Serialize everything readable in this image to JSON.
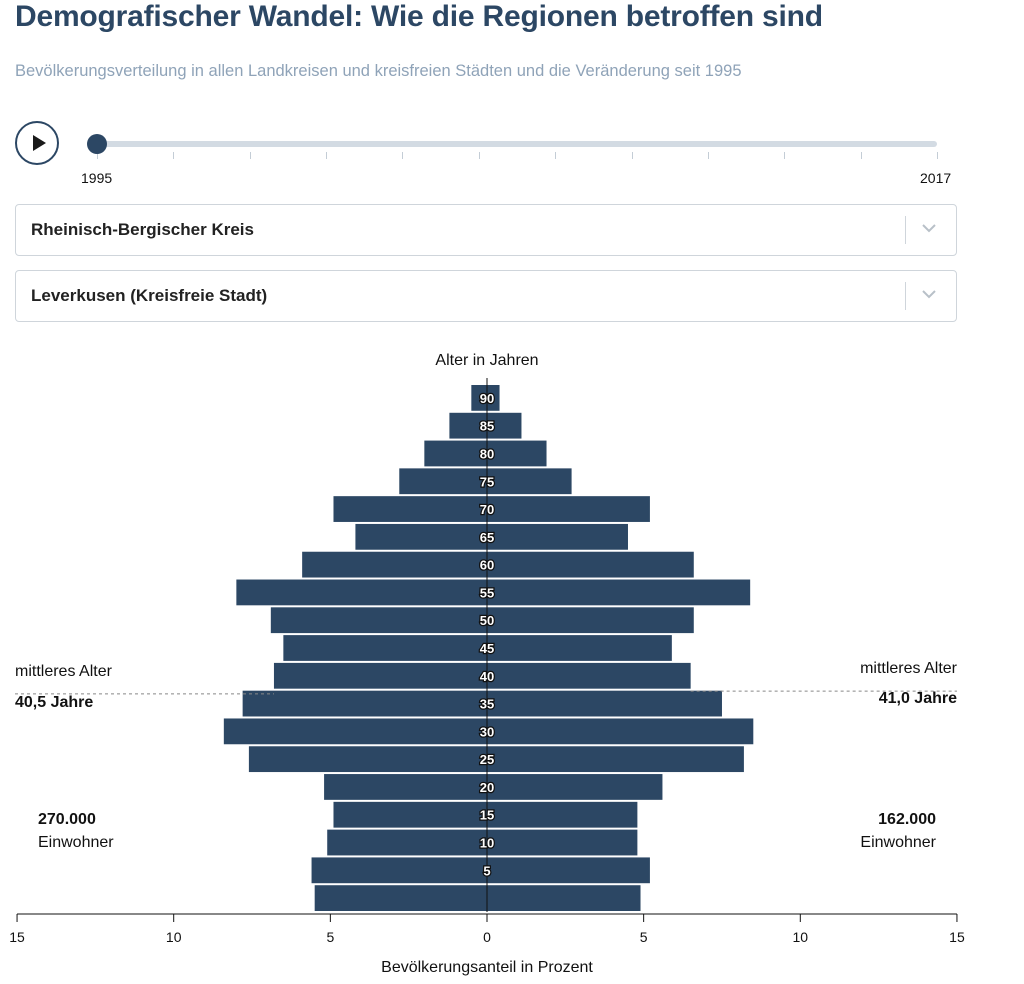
{
  "header": {
    "title": "Demografischer Wandel: Wie die Regionen betroffen sind",
    "subtitle": "Bevölkerungsverteilung in allen Landkreisen und kreisfreien Städten und die Veränderung seit 1995"
  },
  "controls": {
    "play_icon": "play-icon",
    "slider": {
      "start_label": "1995",
      "end_label": "2017",
      "value": 1995,
      "min": 1995,
      "max": 2017
    },
    "region_left": "Rheinisch-Bergischer Kreis",
    "region_right": "Leverkusen (Kreisfreie Stadt)"
  },
  "colors": {
    "bar": "#2c4764",
    "title": "#2c4764",
    "subtitle": "#8fa3b8"
  },
  "chart_data": {
    "type": "bar",
    "orientation": "horizontal-population-pyramid",
    "y_title": "Alter in Jahren",
    "x_title": "Bevölkerungsanteil in Prozent",
    "xlim": [
      -15,
      15
    ],
    "x_ticks": [
      "15",
      "10",
      "5",
      "0",
      "5",
      "10",
      "15"
    ],
    "categories": [
      "0",
      "5",
      "10",
      "15",
      "20",
      "25",
      "30",
      "35",
      "40",
      "45",
      "50",
      "55",
      "60",
      "65",
      "70",
      "75",
      "80",
      "85",
      "90"
    ],
    "category_labels": [
      "",
      "5",
      "10",
      "15",
      "20",
      "25",
      "30",
      "35",
      "40",
      "45",
      "50",
      "55",
      "60",
      "65",
      "70",
      "75",
      "80",
      "85",
      "90"
    ],
    "series": [
      {
        "name": "Rheinisch-Bergischer Kreis",
        "side": "left",
        "values": [
          5.5,
          5.6,
          5.1,
          4.9,
          5.2,
          7.6,
          8.4,
          7.8,
          6.8,
          6.5,
          6.9,
          8.0,
          5.9,
          4.2,
          4.9,
          2.8,
          2.0,
          1.2,
          0.5
        ]
      },
      {
        "name": "Leverkusen (Kreisfreie Stadt)",
        "side": "right",
        "values": [
          4.9,
          5.2,
          4.8,
          4.8,
          5.6,
          8.2,
          8.5,
          7.5,
          6.5,
          5.9,
          6.6,
          8.4,
          6.6,
          4.5,
          5.2,
          2.7,
          1.9,
          1.1,
          0.4
        ]
      }
    ],
    "median_age": {
      "left": {
        "label": "mittleres Alter",
        "value_text": "40,5 Jahre",
        "value": 40.5
      },
      "right": {
        "label": "mittleres Alter",
        "value_text": "41,0 Jahre",
        "value": 41.0
      }
    },
    "population": {
      "left": {
        "value_text": "270.000",
        "unit": "Einwohner"
      },
      "right": {
        "value_text": "162.000",
        "unit": "Einwohner"
      }
    }
  }
}
